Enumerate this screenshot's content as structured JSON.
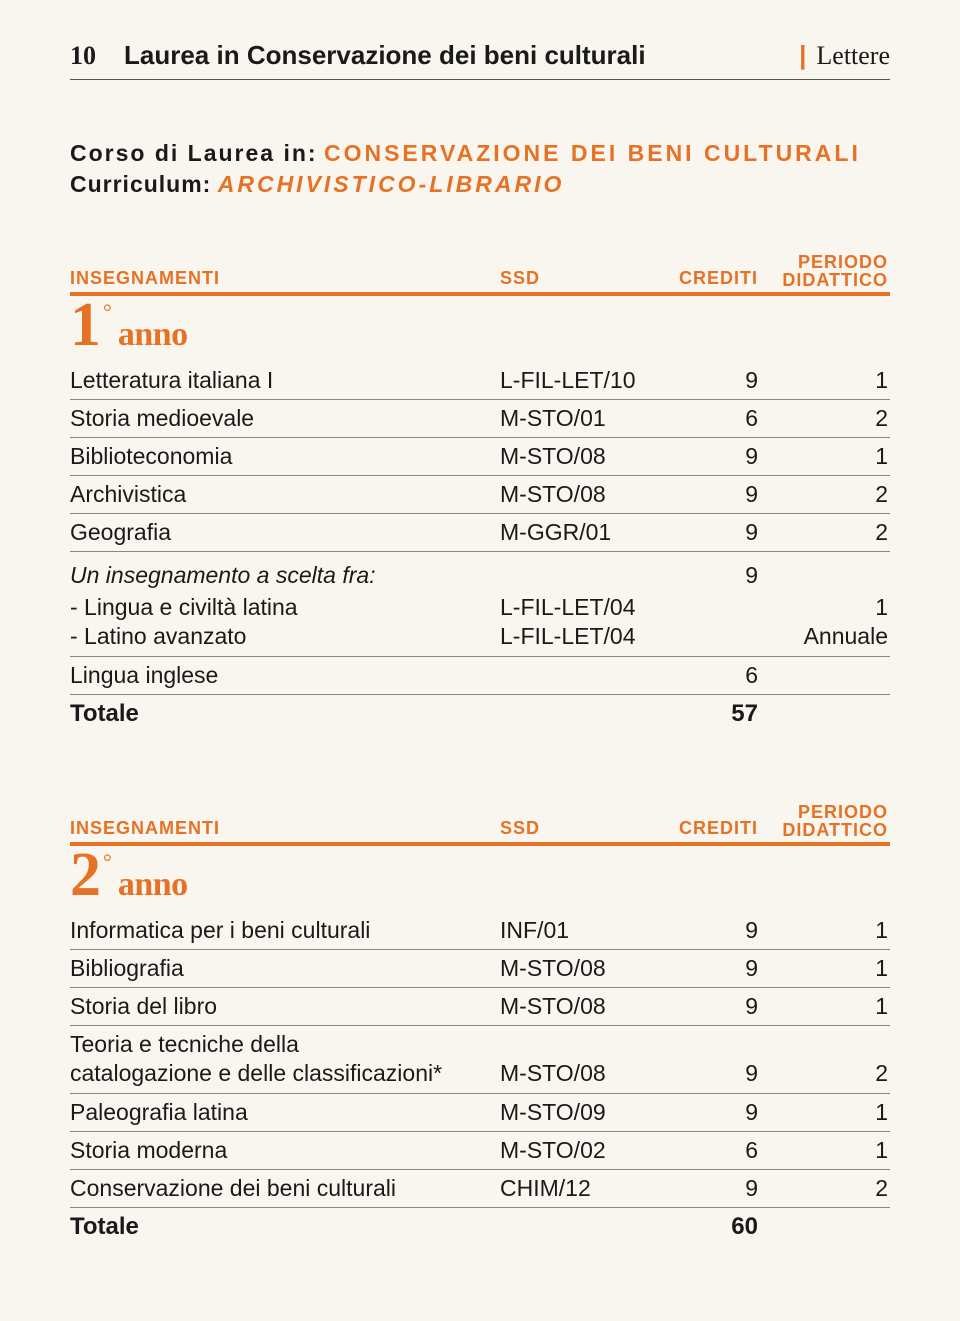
{
  "page_number": "10",
  "page_title": "Laurea in Conservazione dei beni culturali",
  "faculty": "Lettere",
  "corso": {
    "label": "Corso di Laurea in:",
    "value": "CONSERVAZIONE DEI BENI CULTURALI"
  },
  "curriculum": {
    "label": "Curriculum:",
    "value": "ARCHIVISTICO-LIBRARIO"
  },
  "columns": {
    "name": "INSEGNAMENTI",
    "ssd": "SSD",
    "crediti": "CREDITI",
    "periodo_top": "PERIODO",
    "periodo_bot": "DIDATTICO"
  },
  "accent_color": "#e57225",
  "background_color": "#f9f5ef",
  "text_color": "#1a1a1a",
  "year1": {
    "number": "1",
    "degree": "°",
    "word": "anno",
    "rows": [
      {
        "name": "Letteratura italiana I",
        "ssd": "L-FIL-LET/10",
        "cred": "9",
        "per": "1"
      },
      {
        "name": "Storia medioevale",
        "ssd": "M-STO/01",
        "cred": "6",
        "per": "2"
      },
      {
        "name": "Biblioteconomia",
        "ssd": "M-STO/08",
        "cred": "9",
        "per": "1"
      },
      {
        "name": "Archivistica",
        "ssd": "M-STO/08",
        "cred": "9",
        "per": "2"
      },
      {
        "name": "Geografia",
        "ssd": "M-GGR/01",
        "cred": "9",
        "per": "2"
      }
    ],
    "choice_group": {
      "title": "Un insegnamento a scelta fra:",
      "cred": "9",
      "items": [
        {
          "name": "- Lingua e civiltà latina",
          "ssd": "L-FIL-LET/04",
          "per": "1"
        },
        {
          "name": "- Latino avanzato",
          "ssd": "L-FIL-LET/04",
          "per": "Annuale"
        }
      ]
    },
    "extra_rows": [
      {
        "name": "Lingua inglese",
        "ssd": "",
        "cred": "6",
        "per": ""
      }
    ],
    "total_label": "Totale",
    "total_value": "57"
  },
  "year2": {
    "number": "2",
    "degree": "°",
    "word": "anno",
    "rows": [
      {
        "name": "Informatica per i beni culturali",
        "ssd": "INF/01",
        "cred": "9",
        "per": "1"
      },
      {
        "name": "Bibliografia",
        "ssd": "M-STO/08",
        "cred": "9",
        "per": "1"
      },
      {
        "name": "Storia del libro",
        "ssd": "M-STO/08",
        "cred": "9",
        "per": "1"
      }
    ],
    "multiline_row": {
      "line1": "Teoria e tecniche della",
      "line2": "catalogazione e delle classificazioni*",
      "ssd": "M-STO/08",
      "cred": "9",
      "per": "2"
    },
    "more_rows": [
      {
        "name": "Paleografia latina",
        "ssd": "M-STO/09",
        "cred": "9",
        "per": "1"
      },
      {
        "name": "Storia moderna",
        "ssd": "M-STO/02",
        "cred": "6",
        "per": "1"
      },
      {
        "name": "Conservazione dei beni culturali",
        "ssd": "CHIM/12",
        "cred": "9",
        "per": "2"
      }
    ],
    "total_label": "Totale",
    "total_value": "60"
  }
}
